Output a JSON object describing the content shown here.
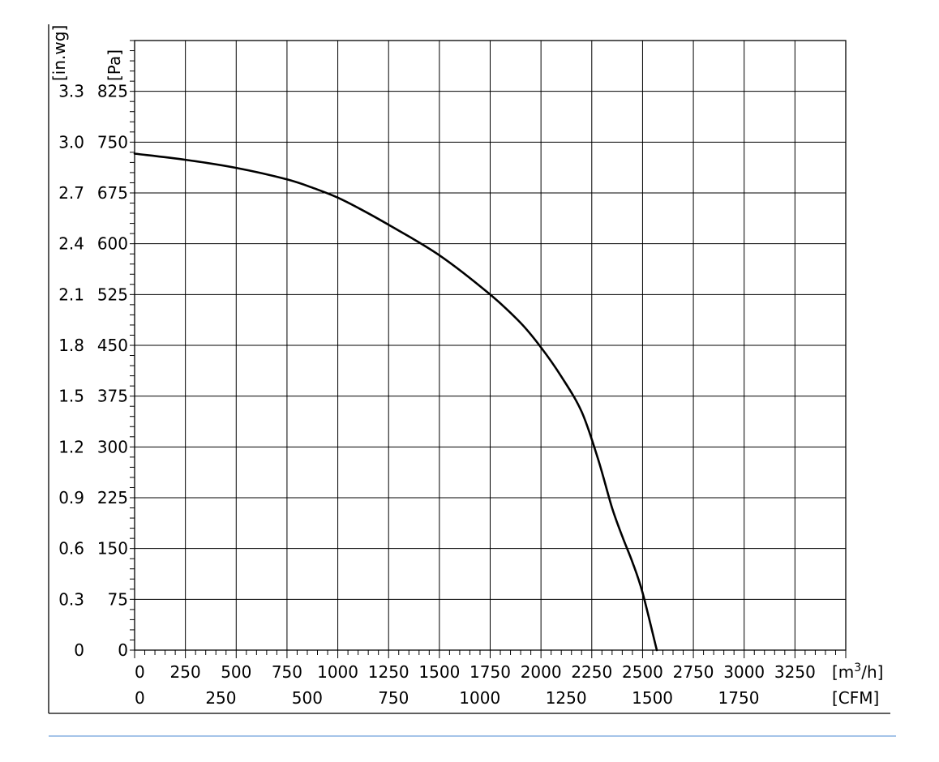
{
  "chart_data": {
    "type": "line",
    "title": "",
    "x_axis_primary": {
      "unit_prefix": "[m",
      "unit_sup": "3",
      "unit_suffix": "/h]",
      "range": [
        0,
        3500
      ],
      "ticks": [
        {
          "value": 0,
          "label": "0"
        },
        {
          "value": 250,
          "label": "250"
        },
        {
          "value": 500,
          "label": "500"
        },
        {
          "value": 750,
          "label": "750"
        },
        {
          "value": 1000,
          "label": "1000"
        },
        {
          "value": 1250,
          "label": "1250"
        },
        {
          "value": 1500,
          "label": "1500"
        },
        {
          "value": 1750,
          "label": "1750"
        },
        {
          "value": 2000,
          "label": "2000"
        },
        {
          "value": 2250,
          "label": "2250"
        },
        {
          "value": 2500,
          "label": "2500"
        },
        {
          "value": 2750,
          "label": "2750"
        },
        {
          "value": 3000,
          "label": "3000"
        },
        {
          "value": 3250,
          "label": "3250"
        }
      ],
      "minor_step": 50
    },
    "x_axis_secondary": {
      "unit": "[CFM]",
      "ticks": [
        {
          "value": 0,
          "label": "0"
        },
        {
          "value": 250,
          "label": "250"
        },
        {
          "value": 500,
          "label": "500"
        },
        {
          "value": 750,
          "label": "750"
        },
        {
          "value": 1000,
          "label": "1000"
        },
        {
          "value": 1250,
          "label": "1250"
        },
        {
          "value": 1500,
          "label": "1500"
        },
        {
          "value": 1750,
          "label": "1750"
        }
      ],
      "m3h_per_cfm": 1.699
    },
    "y_axis_primary": {
      "unit": "[Pa]",
      "range": [
        0,
        900
      ],
      "ticks": [
        {
          "value": 0,
          "label": "0"
        },
        {
          "value": 75,
          "label": "75"
        },
        {
          "value": 150,
          "label": "150"
        },
        {
          "value": 225,
          "label": "225"
        },
        {
          "value": 300,
          "label": "300"
        },
        {
          "value": 375,
          "label": "375"
        },
        {
          "value": 450,
          "label": "450"
        },
        {
          "value": 525,
          "label": "525"
        },
        {
          "value": 600,
          "label": "600"
        },
        {
          "value": 675,
          "label": "675"
        },
        {
          "value": 750,
          "label": "750"
        },
        {
          "value": 825,
          "label": "825"
        }
      ],
      "minor_step": 15
    },
    "y_axis_secondary": {
      "unit": "[in.wg]",
      "tick_labels": [
        "0",
        "0.3",
        "0.6",
        "0.9",
        "1.2",
        "1.5",
        "1.8",
        "2.1",
        "2.4",
        "2.7",
        "3.0",
        "3.3"
      ]
    },
    "grid": true,
    "series": [
      {
        "x": [
          0,
          250,
          500,
          750,
          900,
          1000,
          1100,
          1250,
          1500,
          1750,
          1900,
          2000,
          2100,
          2200,
          2280,
          2350,
          2400,
          2450,
          2500,
          2570
        ],
        "y": [
          733,
          724,
          712,
          695,
          680,
          668,
          653,
          628,
          583,
          525,
          483,
          447,
          404,
          352,
          283,
          210,
          168,
          130,
          85,
          0
        ]
      }
    ]
  }
}
